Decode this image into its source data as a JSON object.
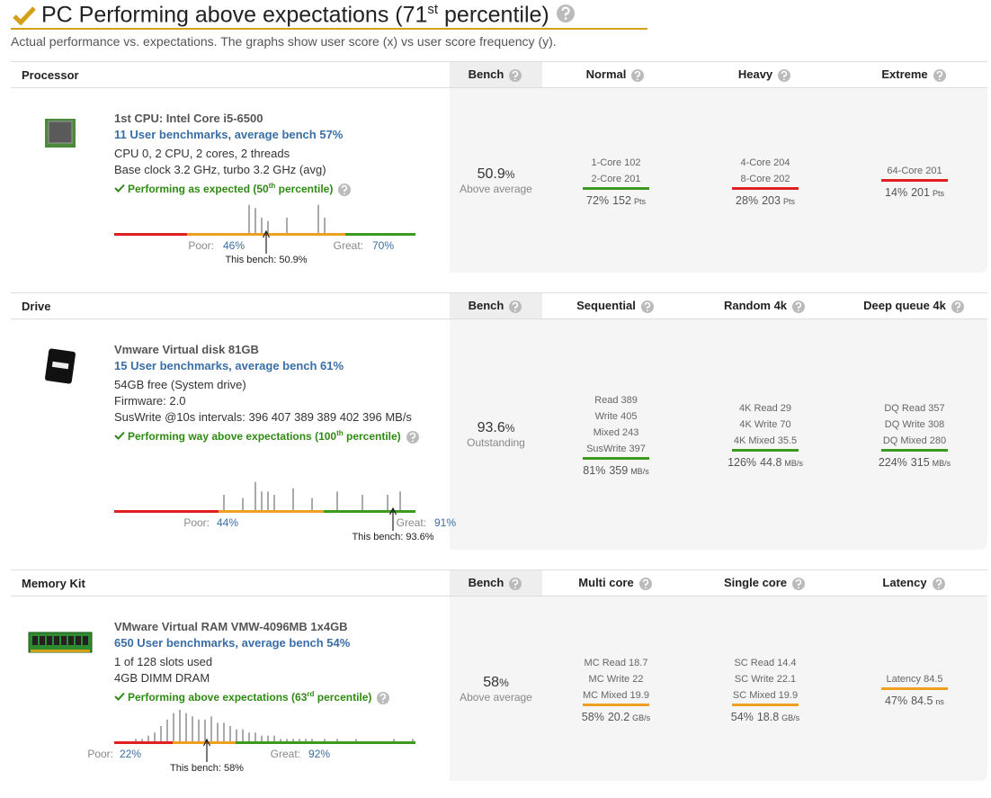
{
  "header": {
    "title_pre": "PC Performing above expectations (71",
    "title_sup": "st",
    "title_post": " percentile)",
    "subtitle": "Actual performance vs. expectations. The graphs show user score (x) vs user score frequency (y)."
  },
  "sections": [
    {
      "title": "Processor",
      "bench_header": "Bench",
      "columns": [
        "Normal",
        "Heavy",
        "Extreme"
      ],
      "component": {
        "name": "1st CPU: Intel Core i5-6500",
        "link": "11 User benchmarks, average bench 57%",
        "details": [
          "CPU 0, 2 CPU, 2 cores, 2 threads",
          "Base clock 3.2 GHz, turbo 3.2 GHz (avg)"
        ],
        "status": {
          "pre": "Performing as expected (50",
          "sup": "th",
          "post": " percentile)"
        }
      },
      "histogram": {
        "frequency": [
          0,
          0,
          0,
          0,
          0,
          0,
          0,
          0,
          0,
          0,
          0,
          0,
          0,
          0,
          0,
          0,
          0,
          0,
          0,
          0,
          0,
          9,
          8,
          5,
          4,
          0,
          0,
          5,
          0,
          0,
          0,
          0,
          9,
          5,
          0,
          0,
          0,
          0,
          0,
          0,
          0,
          0,
          0,
          0,
          0,
          0,
          0,
          0
        ],
        "poor_label": "Poor:",
        "poor_value": "46%",
        "great_label": "Great:",
        "great_value": "70%",
        "this_bench": "This bench: 50.9%"
      },
      "bench": {
        "value": "50.9",
        "unit": "%",
        "desc": "Above average"
      },
      "metrics": [
        {
          "lines": [
            "1-Core 102",
            "2-Core 201"
          ],
          "color": "#3c9a1e",
          "percent": "72%",
          "value": "152",
          "unit": "Pts"
        },
        {
          "lines": [
            "4-Core 204",
            "8-Core 202"
          ],
          "color": "#e02020",
          "percent": "28%",
          "value": "203",
          "unit": "Pts"
        },
        {
          "lines": [
            "64-Core 201"
          ],
          "color": "#e02020",
          "percent": "14%",
          "value": "201",
          "unit": "Pts"
        }
      ]
    },
    {
      "title": "Drive",
      "bench_header": "Bench",
      "columns": [
        "Sequential",
        "Random 4k",
        "Deep queue 4k"
      ],
      "component": {
        "name": "Vmware Virtual disk 81GB",
        "link": "15 User benchmarks, average bench 61%",
        "details": [
          "54GB free (System drive)",
          "Firmware: 2.0",
          "SusWrite @10s intervals: 396 407 389 389 402 396 MB/s"
        ],
        "status": {
          "pre": "Performing way above expectations (100",
          "sup": "th",
          "post": " percentile)"
        }
      },
      "histogram": {
        "frequency": [
          0,
          0,
          0,
          0,
          0,
          0,
          0,
          0,
          0,
          0,
          0,
          0,
          0,
          0,
          0,
          0,
          0,
          5,
          0,
          0,
          4,
          0,
          9,
          6,
          6,
          5,
          0,
          0,
          7,
          0,
          0,
          4,
          0,
          0,
          0,
          6,
          0,
          0,
          0,
          5,
          0,
          0,
          0,
          5,
          0,
          6,
          0,
          0
        ],
        "poor_label": "Poor:",
        "poor_value": "44%",
        "great_label": "Great:",
        "great_value": "91%",
        "this_bench": "This bench: 93.6%"
      },
      "bench": {
        "value": "93.6",
        "unit": "%",
        "desc": "Outstanding"
      },
      "metrics": [
        {
          "lines": [
            "Read 389",
            "Write 405",
            "Mixed 243",
            "SusWrite 397"
          ],
          "color": "#3c9a1e",
          "percent": "81%",
          "value": "359",
          "unit": "MB/s"
        },
        {
          "lines": [
            "4K Read 29",
            "4K Write 70",
            "4K Mixed 35.5"
          ],
          "color": "#3c9a1e",
          "percent": "126%",
          "value": "44.8",
          "unit": "MB/s"
        },
        {
          "lines": [
            "DQ Read 357",
            "DQ Write 308",
            "DQ Mixed 280"
          ],
          "color": "#3c9a1e",
          "percent": "224%",
          "value": "315",
          "unit": "MB/s"
        }
      ]
    },
    {
      "title": "Memory Kit",
      "bench_header": "Bench",
      "columns": [
        "Multi core",
        "Single core",
        "Latency"
      ],
      "component": {
        "name": "VMware Virtual RAM VMW-4096MB 1x4GB",
        "link": "650 User benchmarks, average bench 54%",
        "details": [
          "1 of 128 slots used",
          "4GB DIMM DRAM"
        ],
        "status": {
          "pre": "Performing above expectations (63",
          "sup": "rd",
          "post": " percentile)"
        }
      },
      "histogram": {
        "frequency": [
          0,
          0,
          0,
          1,
          1,
          2,
          3,
          5,
          7,
          9,
          10,
          9,
          8,
          7,
          7,
          8,
          6,
          6,
          5,
          4,
          4,
          3,
          3,
          2,
          2,
          2,
          1,
          1,
          1,
          1,
          1,
          1,
          0,
          1,
          0,
          1,
          0,
          0,
          1,
          0,
          0,
          0,
          0,
          0,
          1,
          0,
          0,
          1
        ],
        "poor_label": "Poor:",
        "poor_value": "22%",
        "great_label": "Great:",
        "great_value": "92%",
        "this_bench": "This bench: 58%"
      },
      "bench": {
        "value": "58",
        "unit": "%",
        "desc": "Above average"
      },
      "metrics": [
        {
          "lines": [
            "MC Read 18.7",
            "MC Write 22",
            "MC Mixed 19.9"
          ],
          "color": "#f0a020",
          "percent": "58%",
          "value": "20.2",
          "unit": "GB/s"
        },
        {
          "lines": [
            "SC Read 14.4",
            "SC Write 22.1",
            "SC Mixed 19.9"
          ],
          "color": "#f0a020",
          "percent": "54%",
          "value": "18.8",
          "unit": "GB/s"
        },
        {
          "lines": [
            "Latency 84.5"
          ],
          "color": "#f0a020",
          "percent": "47%",
          "value": "84.5",
          "unit": "ns"
        }
      ]
    }
  ]
}
